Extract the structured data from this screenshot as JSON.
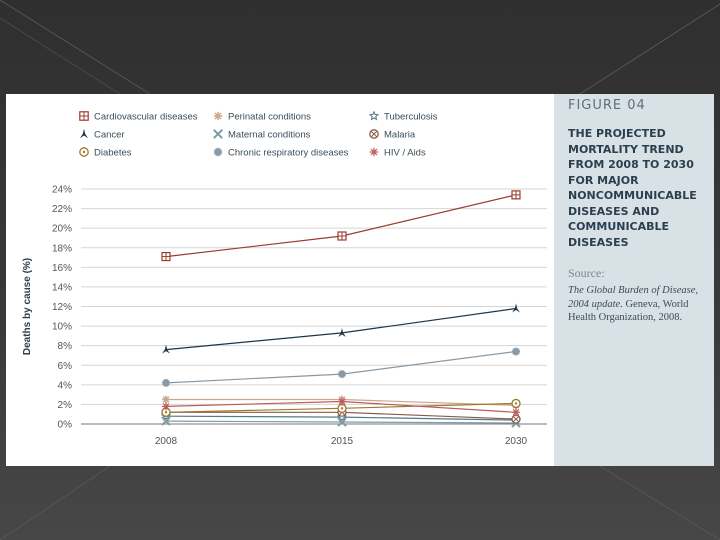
{
  "figure_label": "FIGURE 04",
  "figure_title": "THE PROJECTED MORTALITY TREND FROM 2008 TO 2030 FOR MAJOR NONCOMMUNICABLE DISEASES AND COMMUNICABLE DISEASES",
  "source": {
    "heading": "Source:",
    "title": "The Global Burden of Disease, 2004 update.",
    "rest": " Geneva, World Health Organization, 2008."
  },
  "colors": {
    "cardiovascular": "#9b3b2e",
    "cancer": "#1f3545",
    "diabetes": "#9c7a2a",
    "perinatal": "#c9a98a",
    "maternal": "#7e9aa6",
    "chronic_respiratory": "#8899a6",
    "tuberculosis": "#55788a",
    "malaria": "#8a5a4a",
    "hiv": "#c05a5a"
  },
  "chart_data": {
    "type": "line",
    "title": "",
    "xlabel": "",
    "ylabel": "Deaths by cause (%)",
    "x": [
      "2008",
      "2015",
      "2030"
    ],
    "ylim": [
      0,
      24
    ],
    "yticks": [
      "0%",
      "2%",
      "4%",
      "6%",
      "8%",
      "10%",
      "12%",
      "14%",
      "16%",
      "18%",
      "20%",
      "22%",
      "24%"
    ],
    "legend_position": "top",
    "series": [
      {
        "name": "Cardiovascular diseases",
        "marker": "square-cross",
        "values": [
          17.1,
          19.2,
          23.4
        ]
      },
      {
        "name": "Perinatal conditions",
        "marker": "asterisk",
        "values": [
          2.5,
          2.5,
          1.9
        ]
      },
      {
        "name": "Tuberculosis",
        "marker": "star",
        "values": [
          0.8,
          0.7,
          0.4
        ]
      },
      {
        "name": "Cancer",
        "marker": "trefoil",
        "values": [
          7.6,
          9.3,
          11.8
        ]
      },
      {
        "name": "Maternal conditions",
        "marker": "x",
        "values": [
          0.3,
          0.2,
          0.1
        ]
      },
      {
        "name": "Malaria",
        "marker": "circle-x",
        "values": [
          1.2,
          1.2,
          0.5
        ]
      },
      {
        "name": "Diabetes",
        "marker": "circle-dot",
        "values": [
          1.2,
          1.6,
          2.1
        ]
      },
      {
        "name": "Chronic respiratory diseases",
        "marker": "snowflake",
        "values": [
          4.2,
          5.1,
          7.4
        ]
      },
      {
        "name": "HIV / Aids",
        "marker": "asterisk-small",
        "values": [
          1.8,
          2.3,
          1.2
        ]
      }
    ]
  }
}
